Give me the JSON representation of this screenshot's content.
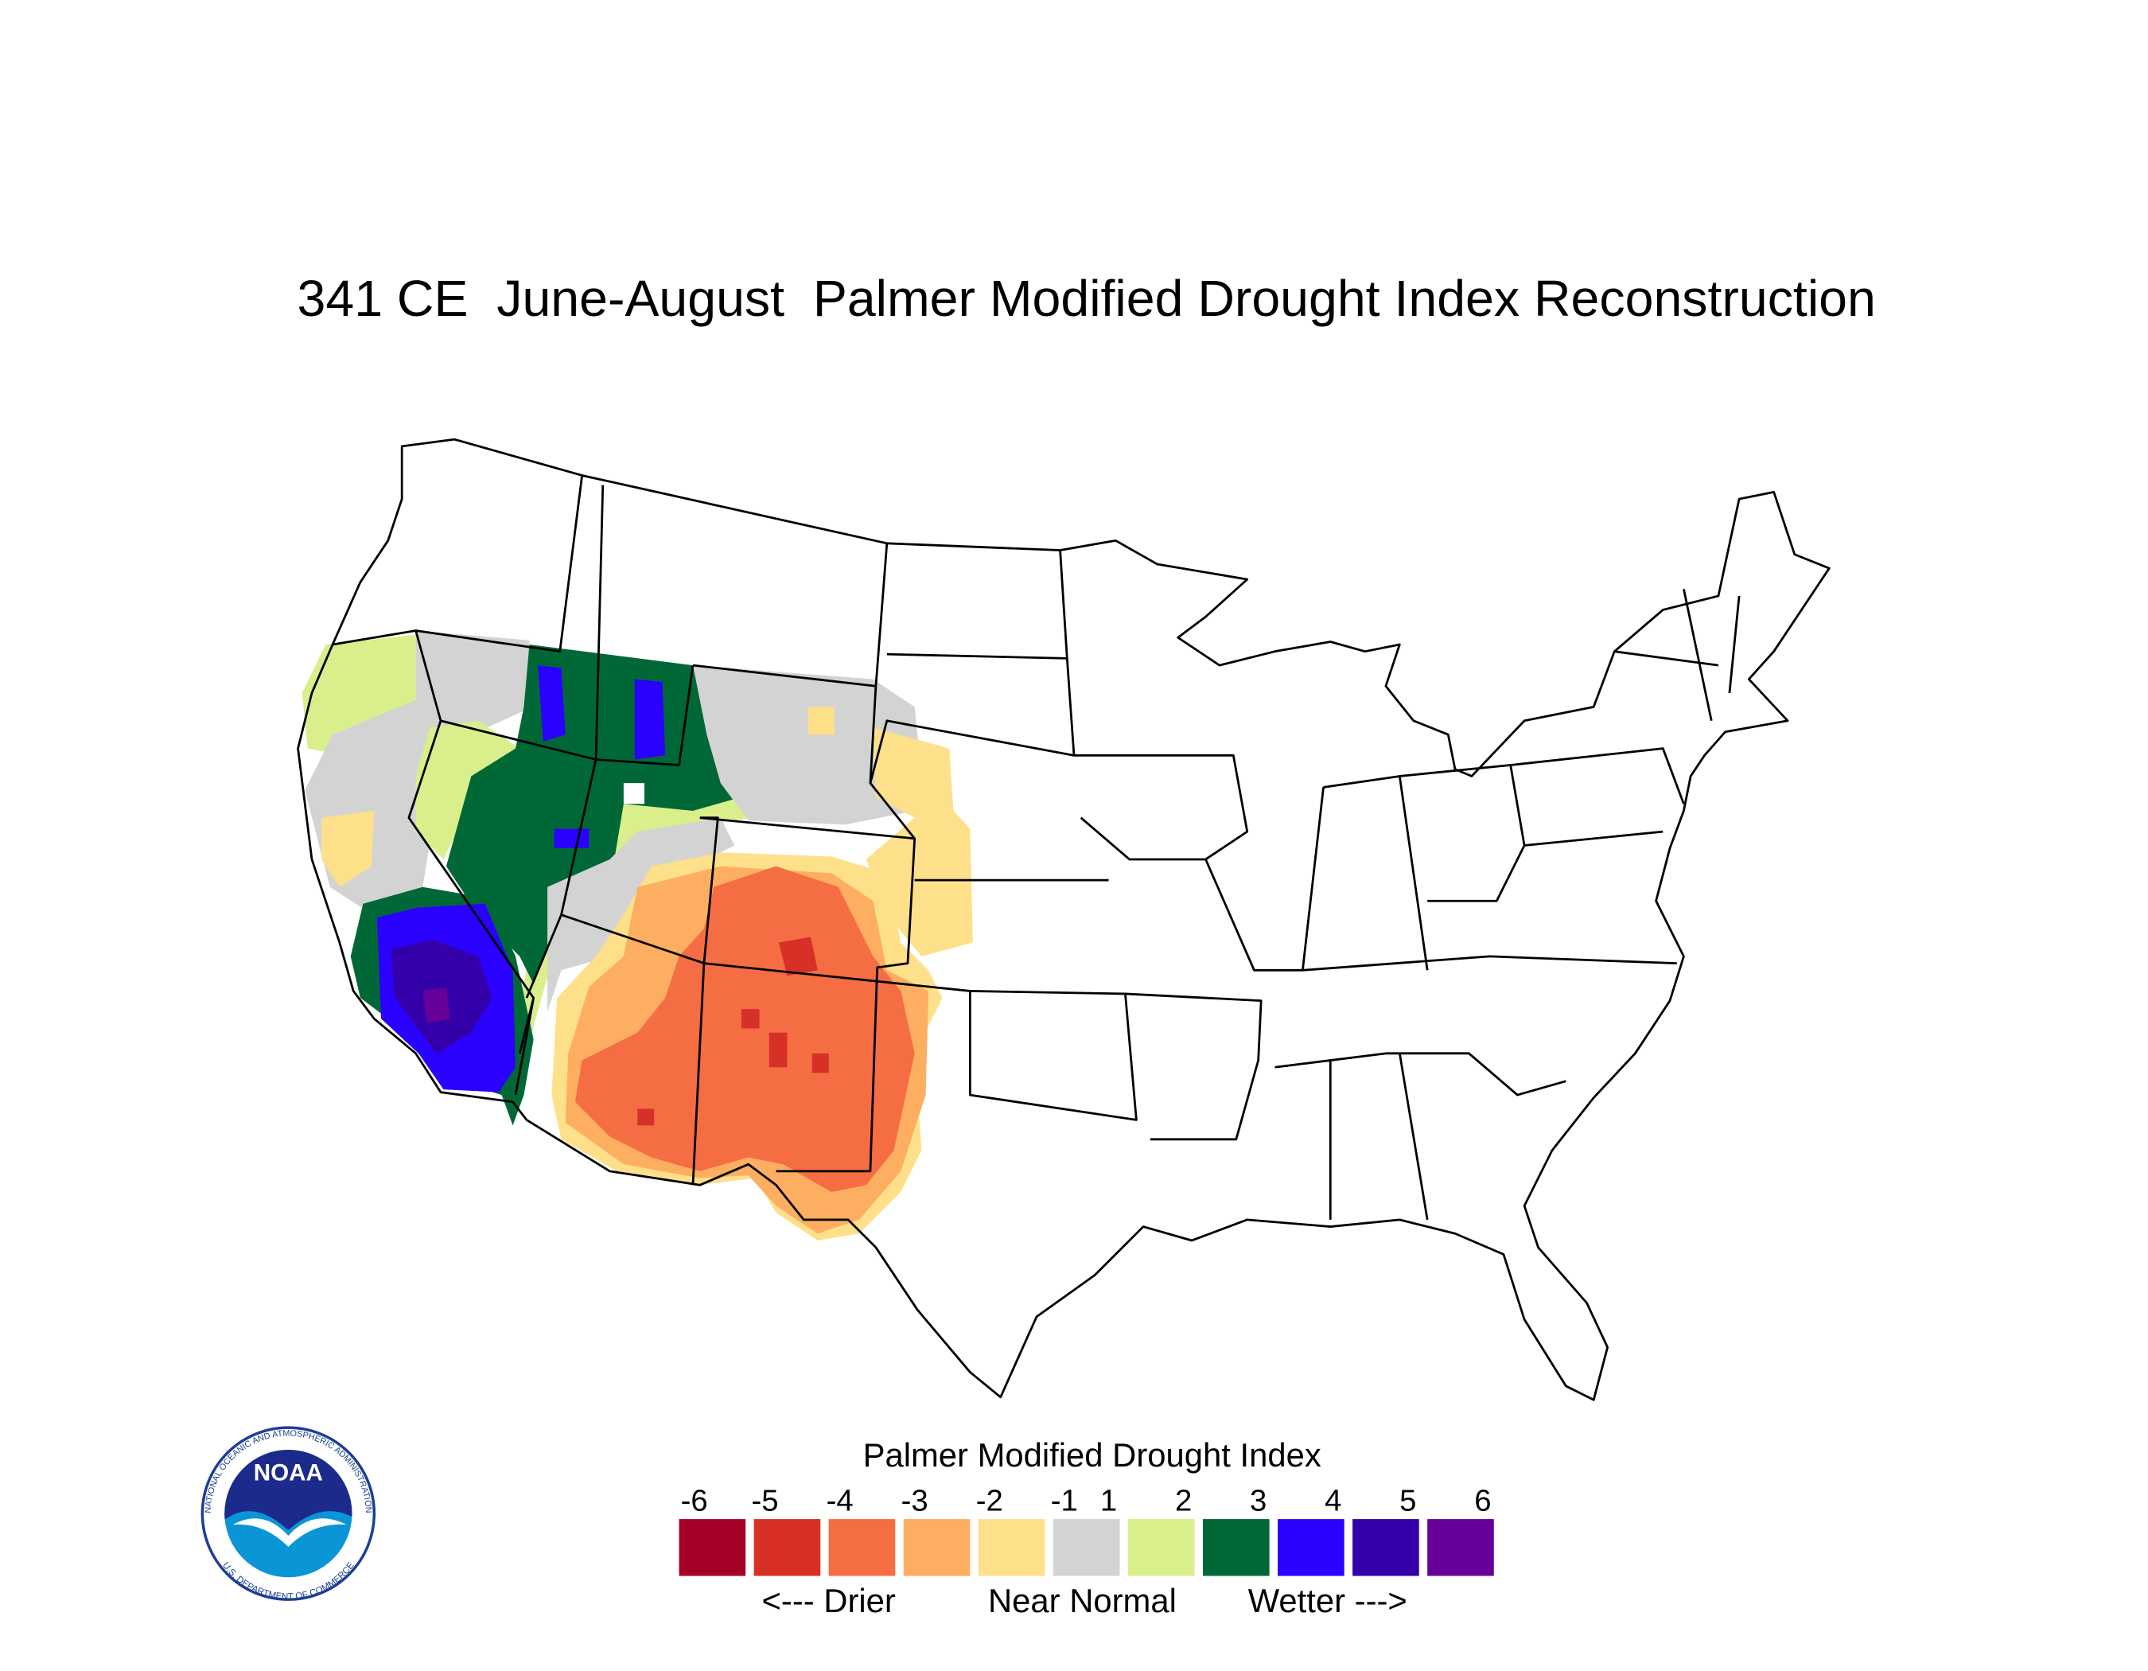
{
  "title": "341 CE  June-August  Palmer Modified Drought Index Reconstruction",
  "legend": {
    "title": "Palmer Modified Drought Index",
    "ticks": [
      -6,
      -5,
      -4,
      -3,
      -2,
      -1,
      1,
      2,
      3,
      4,
      5,
      6
    ],
    "colors": [
      "#a50026",
      "#d73027",
      "#f46d43",
      "#fdae61",
      "#fee08b",
      "#d3d3d3",
      "#d9ef8b",
      "#006837",
      "#2a00ff",
      "#3300aa",
      "#660099"
    ],
    "labels": [
      "<--- Drier",
      "Near Normal",
      "Wetter --->"
    ]
  },
  "logo": {
    "name": "NOAA",
    "ring_top": "NATIONAL OCEANIC AND ATMOSPHERIC ADMINISTRATION",
    "ring_bottom": "U.S. DEPARTMENT OF COMMERCE"
  }
}
